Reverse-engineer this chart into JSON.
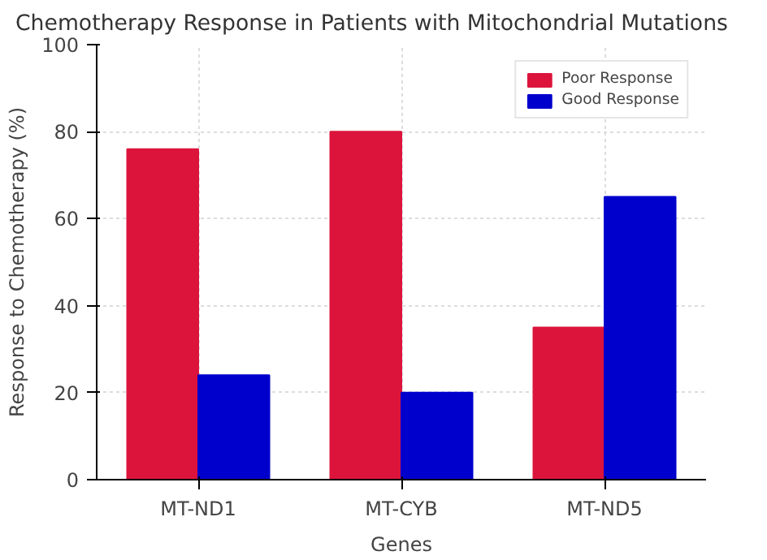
{
  "chart_data": {
    "type": "bar",
    "title": "Chemotherapy Response in Patients with Mitochondrial Mutations",
    "xlabel": "Genes",
    "ylabel": "Response to Chemotherapy (%)",
    "categories": [
      "MT-ND1",
      "MT-CYB",
      "MT-ND5"
    ],
    "series": [
      {
        "name": "Poor Response",
        "color": "#dc143c",
        "values": [
          76,
          80,
          35
        ]
      },
      {
        "name": "Good Response",
        "color": "#0000cd",
        "values": [
          24,
          20,
          65
        ]
      }
    ],
    "ylim": [
      0,
      100
    ],
    "yticks": [
      0,
      20,
      40,
      60,
      80,
      100
    ],
    "grid": true,
    "legend": "top right"
  }
}
